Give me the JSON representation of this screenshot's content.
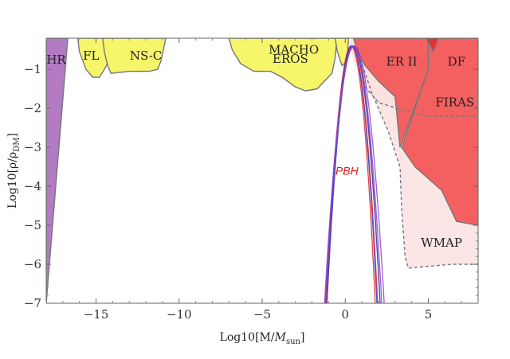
{
  "chart_data": {
    "type": "area",
    "title": "",
    "xlabel": "Log10[M/M_sun]",
    "ylabel": "Log10[ρ/ρ_DM]",
    "xlim": [
      -18,
      8
    ],
    "ylim": [
      -7,
      -0.2
    ],
    "x_ticks": [
      -15,
      -10,
      -5,
      0,
      5
    ],
    "y_ticks": [
      -1,
      -2,
      -3,
      -4,
      -5,
      -6,
      -7
    ],
    "colors": {
      "purple_region": "#b27bc4",
      "yellow_region": "#f7f56a",
      "red_region": "#f46060",
      "dark_red_region": "#ee2d2d",
      "pink_region": "#fce0e0",
      "boundary": "#777777",
      "pbh_curve": "#e52222",
      "pbh_label": "#e01818",
      "blue_curve": "#3344cc",
      "violet_curve": "#8844cc"
    },
    "regions": [
      {
        "name": "HR",
        "label": "HR",
        "color_key": "purple_region",
        "label_pos": [
          -17.4,
          -0.85
        ],
        "points": [
          [
            -18,
            -7
          ],
          [
            -18,
            -0.2
          ],
          [
            -16.7,
            -0.2
          ]
        ]
      },
      {
        "name": "FL",
        "label": "FL",
        "color_key": "yellow_region",
        "label_pos": [
          -15.3,
          -0.75
        ],
        "points": [
          [
            -16.1,
            -0.2
          ],
          [
            -16.0,
            -0.55
          ],
          [
            -15.6,
            -1.0
          ],
          [
            -15.2,
            -1.2
          ],
          [
            -14.8,
            -1.2
          ],
          [
            -14.5,
            -1.0
          ],
          [
            -14.2,
            -0.75
          ],
          [
            -13.9,
            -0.55
          ],
          [
            -13.7,
            -0.4
          ],
          [
            -13.6,
            -0.2
          ]
        ]
      },
      {
        "name": "NS-C",
        "label": "NS-C",
        "color_key": "yellow_region",
        "label_pos": [
          -12.0,
          -0.75
        ],
        "points": [
          [
            -14.6,
            -0.2
          ],
          [
            -14.5,
            -0.55
          ],
          [
            -14.3,
            -0.9
          ],
          [
            -14.1,
            -1.1
          ],
          [
            -13.0,
            -1.05
          ],
          [
            -11.8,
            -1.05
          ],
          [
            -11.3,
            -1.0
          ],
          [
            -11.1,
            -0.8
          ],
          [
            -10.9,
            -0.4
          ],
          [
            -10.8,
            -0.2
          ]
        ]
      },
      {
        "name": "MACHO",
        "label": "MACHO",
        "color_key": "yellow_region",
        "label_pos": [
          -3.1,
          -0.6
        ],
        "points": [
          [
            -7.0,
            -0.2
          ],
          [
            -6.8,
            -0.5
          ],
          [
            -6.3,
            -0.85
          ],
          [
            -5.5,
            -1.05
          ],
          [
            -4.5,
            -1.05
          ],
          [
            -3.8,
            -1.2
          ],
          [
            -3.0,
            -1.45
          ],
          [
            -2.4,
            -1.55
          ],
          [
            -1.7,
            -1.5
          ],
          [
            -0.8,
            -1.1
          ],
          [
            -0.6,
            -0.7
          ],
          [
            -0.5,
            -0.2
          ]
        ]
      },
      {
        "name": "EROS",
        "label": "EROS",
        "color_key": "yellow_region",
        "label_pos": [
          -3.3,
          -0.83
        ],
        "points": [
          [
            -0.6,
            -0.2
          ],
          [
            -0.5,
            -0.5
          ],
          [
            -0.2,
            -0.9
          ],
          [
            0.1,
            -0.8
          ],
          [
            0.2,
            -0.2
          ]
        ]
      },
      {
        "name": "FIRAS",
        "label": "FIRAS",
        "color_key": "pink_region",
        "label_pos": [
          6.6,
          -1.95
        ],
        "points": [
          [
            0.2,
            -0.3
          ],
          [
            0.6,
            -0.9
          ],
          [
            1.2,
            -1.5
          ],
          [
            2.0,
            -1.9
          ],
          [
            3.5,
            -2.1
          ],
          [
            5.0,
            -2.2
          ],
          [
            8,
            -2.2
          ],
          [
            8,
            -0.2
          ],
          [
            0.4,
            -0.2
          ]
        ]
      },
      {
        "name": "WMAP",
        "label": "WMAP",
        "color_key": "pink_region",
        "label_pos": [
          5.8,
          -5.55
        ],
        "points": [
          [
            0.2,
            -0.3
          ],
          [
            1.5,
            -1.5
          ],
          [
            2.6,
            -2.6
          ],
          [
            3.3,
            -3.5
          ],
          [
            3.4,
            -4.6
          ],
          [
            3.6,
            -5.8
          ],
          [
            3.8,
            -6.1
          ],
          [
            5.0,
            -6.05
          ],
          [
            6.5,
            -6.0
          ],
          [
            8,
            -6.0
          ],
          [
            8,
            -0.2
          ],
          [
            0.4,
            -0.2
          ]
        ]
      },
      {
        "name": "ER II",
        "label": "ER II",
        "color_key": "red_region",
        "label_pos": [
          3.4,
          -0.9
        ],
        "points": [
          [
            0.5,
            -0.2
          ],
          [
            0.7,
            -0.5
          ],
          [
            1.2,
            -0.9
          ],
          [
            2.0,
            -1.3
          ],
          [
            3.0,
            -1.7
          ],
          [
            3.3,
            -3.0
          ],
          [
            5.0,
            -1.0
          ],
          [
            5.0,
            -0.2
          ]
        ]
      },
      {
        "name": "DF",
        "label": "DF",
        "color_key": "red_region",
        "label_pos": [
          6.7,
          -0.9
        ],
        "points": [
          [
            5.0,
            -0.2
          ],
          [
            5.0,
            -1.0
          ],
          [
            3.4,
            -3.0
          ],
          [
            4.2,
            -3.5
          ],
          [
            5.8,
            -4.1
          ],
          [
            6.7,
            -4.9
          ],
          [
            8,
            -5.0
          ],
          [
            8,
            -0.2
          ]
        ]
      },
      {
        "name": "dark-red-spike",
        "label": "",
        "color_key": "dark_red_region",
        "label_pos": null,
        "points": [
          [
            4.9,
            -0.2
          ],
          [
            5.3,
            -0.55
          ],
          [
            5.6,
            -0.2
          ]
        ]
      }
    ],
    "dashed_boundaries": [
      {
        "name": "FIRAS",
        "points": [
          [
            0.8,
            -0.6
          ],
          [
            1.2,
            -1.45
          ],
          [
            2.0,
            -1.85
          ],
          [
            3.5,
            -2.05
          ],
          [
            5.0,
            -2.2
          ],
          [
            8,
            -2.2
          ]
        ]
      },
      {
        "name": "WMAP",
        "points": [
          [
            0.8,
            -0.6
          ],
          [
            1.6,
            -1.6
          ],
          [
            2.6,
            -2.6
          ],
          [
            3.3,
            -3.5
          ],
          [
            3.4,
            -4.6
          ],
          [
            3.6,
            -5.8
          ],
          [
            3.8,
            -6.1
          ],
          [
            5.0,
            -6.05
          ],
          [
            6.5,
            -6.0
          ],
          [
            8,
            -6.0
          ]
        ]
      }
    ],
    "pbh_curves": {
      "label": "PBH",
      "label_pos": [
        0.1,
        -3.7
      ],
      "peak_x": 0.4,
      "peak_y": -0.4,
      "series": [
        {
          "name": "red-1",
          "color_key": "pbh_curve",
          "half_width": 1.6,
          "shift": 0.0
        },
        {
          "name": "red-2",
          "color_key": "pbh_curve",
          "half_width": 1.7,
          "shift": 0.05
        },
        {
          "name": "red-3",
          "color_key": "pbh_curve",
          "half_width": 1.5,
          "shift": -0.05
        },
        {
          "name": "blue-1",
          "color_key": "blue_curve",
          "half_width": 1.65,
          "shift": 0.1
        },
        {
          "name": "blue-2",
          "color_key": "blue_curve",
          "half_width": 1.55,
          "shift": 0.0
        },
        {
          "name": "violet-1",
          "color_key": "violet_curve",
          "half_width": 1.85,
          "shift": 0.15
        },
        {
          "name": "violet-2",
          "color_key": "violet_curve",
          "half_width": 1.75,
          "shift": 0.1
        }
      ]
    }
  }
}
